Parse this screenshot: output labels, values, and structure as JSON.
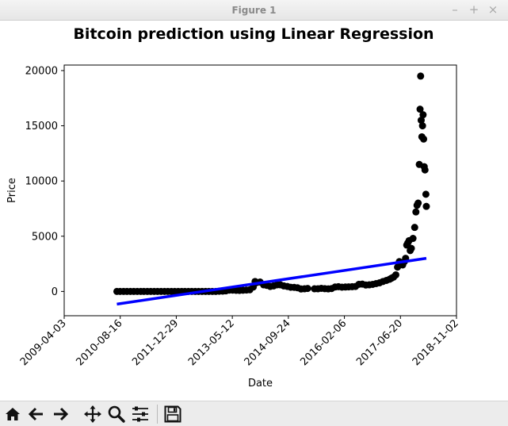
{
  "window": {
    "title": "Figure 1",
    "minimize_glyph": "–",
    "maximize_glyph": "+",
    "close_glyph": "×"
  },
  "toolbar": {
    "buttons": [
      {
        "name": "home-icon",
        "icon": "home"
      },
      {
        "name": "back-icon",
        "icon": "arrow-left"
      },
      {
        "name": "forward-icon",
        "icon": "arrow-right"
      },
      {
        "name": "pan-icon",
        "icon": "move-arrows"
      },
      {
        "name": "zoom-icon",
        "icon": "magnifier"
      },
      {
        "name": "configure-subplots-icon",
        "icon": "sliders"
      },
      {
        "name": "save-icon",
        "icon": "floppy-disk"
      }
    ]
  },
  "chart_data": {
    "type": "scatter",
    "title": "Bitcoin prediction using Linear Regression",
    "xlabel": "Date",
    "ylabel": "Price",
    "xlim": [
      "2009-04-03",
      "2018-11-02"
    ],
    "ylim": [
      -2200,
      20500
    ],
    "x_ticks": [
      "2009-04-03",
      "2010-08-16",
      "2011-12-29",
      "2013-05-12",
      "2014-09-24",
      "2016-02-06",
      "2017-06-20",
      "2018-11-02"
    ],
    "y_ticks": [
      0,
      5000,
      10000,
      15000,
      20000
    ],
    "grid": false,
    "colors": {
      "points": "#000000",
      "regression_line": "#0000ff"
    },
    "series": [
      {
        "kind": "scatter",
        "points": [
          [
            "2010-07-17",
            0
          ],
          [
            "2010-08-15",
            0
          ],
          [
            "2010-09-15",
            0
          ],
          [
            "2010-10-15",
            0
          ],
          [
            "2010-11-15",
            0
          ],
          [
            "2010-12-15",
            0
          ],
          [
            "2011-01-15",
            0
          ],
          [
            "2011-02-15",
            0
          ],
          [
            "2011-03-15",
            0
          ],
          [
            "2011-04-15",
            0
          ],
          [
            "2011-05-15",
            0
          ],
          [
            "2011-06-15",
            0
          ],
          [
            "2011-07-15",
            0
          ],
          [
            "2011-08-15",
            0
          ],
          [
            "2011-09-15",
            0
          ],
          [
            "2011-10-15",
            0
          ],
          [
            "2011-11-15",
            0
          ],
          [
            "2011-12-15",
            0
          ],
          [
            "2012-01-15",
            0
          ],
          [
            "2012-02-15",
            0
          ],
          [
            "2012-03-15",
            0
          ],
          [
            "2012-04-15",
            0
          ],
          [
            "2012-05-15",
            0
          ],
          [
            "2012-06-15",
            0
          ],
          [
            "2012-07-15",
            0
          ],
          [
            "2012-08-15",
            0
          ],
          [
            "2012-09-15",
            0
          ],
          [
            "2012-10-15",
            0
          ],
          [
            "2012-11-15",
            0
          ],
          [
            "2012-12-15",
            0
          ],
          [
            "2013-01-15",
            20
          ],
          [
            "2013-02-15",
            30
          ],
          [
            "2013-03-15",
            50
          ],
          [
            "2013-04-15",
            120
          ],
          [
            "2013-05-15",
            120
          ],
          [
            "2013-06-15",
            100
          ],
          [
            "2013-07-15",
            90
          ],
          [
            "2013-08-15",
            110
          ],
          [
            "2013-09-15",
            130
          ],
          [
            "2013-10-15",
            150
          ],
          [
            "2013-11-15",
            400
          ],
          [
            "2013-12-01",
            900
          ],
          [
            "2013-12-15",
            800
          ],
          [
            "2014-01-15",
            850
          ],
          [
            "2014-02-15",
            600
          ],
          [
            "2014-03-15",
            550
          ],
          [
            "2014-04-15",
            450
          ],
          [
            "2014-05-15",
            500
          ],
          [
            "2014-06-15",
            600
          ],
          [
            "2014-07-15",
            600
          ],
          [
            "2014-08-15",
            500
          ],
          [
            "2014-09-15",
            450
          ],
          [
            "2014-10-15",
            380
          ],
          [
            "2014-11-15",
            370
          ],
          [
            "2014-12-15",
            330
          ],
          [
            "2015-01-15",
            220
          ],
          [
            "2015-02-15",
            240
          ],
          [
            "2015-03-15",
            270
          ],
          [
            "2015-05-15",
            240
          ],
          [
            "2015-06-15",
            240
          ],
          [
            "2015-07-15",
            280
          ],
          [
            "2015-08-15",
            250
          ],
          [
            "2015-09-15",
            230
          ],
          [
            "2015-10-15",
            260
          ],
          [
            "2015-11-15",
            400
          ],
          [
            "2015-12-15",
            430
          ],
          [
            "2016-01-15",
            390
          ],
          [
            "2016-02-15",
            400
          ],
          [
            "2016-03-15",
            415
          ],
          [
            "2016-04-15",
            430
          ],
          [
            "2016-05-15",
            450
          ],
          [
            "2016-06-15",
            650
          ],
          [
            "2016-07-15",
            660
          ],
          [
            "2016-08-15",
            580
          ],
          [
            "2016-09-15",
            600
          ],
          [
            "2016-10-15",
            640
          ],
          [
            "2016-11-15",
            710
          ],
          [
            "2016-12-15",
            780
          ],
          [
            "2017-01-15",
            900
          ],
          [
            "2017-02-15",
            1000
          ],
          [
            "2017-03-15",
            1100
          ],
          [
            "2017-04-01",
            1200
          ],
          [
            "2017-04-20",
            1300
          ],
          [
            "2017-05-10",
            1500
          ],
          [
            "2017-05-25",
            2200
          ],
          [
            "2017-06-10",
            2700
          ],
          [
            "2017-06-25",
            2600
          ],
          [
            "2017-07-10",
            2400
          ],
          [
            "2017-07-25",
            2700
          ],
          [
            "2017-08-05",
            3000
          ],
          [
            "2017-08-15",
            4200
          ],
          [
            "2017-08-25",
            4400
          ],
          [
            "2017-09-05",
            4600
          ],
          [
            "2017-09-15",
            3700
          ],
          [
            "2017-09-25",
            3900
          ],
          [
            "2017-10-10",
            4800
          ],
          [
            "2017-10-25",
            5800
          ],
          [
            "2017-11-05",
            7200
          ],
          [
            "2017-11-15",
            7800
          ],
          [
            "2017-11-25",
            8000
          ],
          [
            "2017-12-05",
            11500
          ],
          [
            "2017-12-12",
            16500
          ],
          [
            "2017-12-17",
            19500
          ],
          [
            "2017-12-22",
            15500
          ],
          [
            "2017-12-28",
            14000
          ],
          [
            "2018-01-03",
            15000
          ],
          [
            "2018-01-08",
            16000
          ],
          [
            "2018-01-13",
            13800
          ],
          [
            "2018-01-18",
            11300
          ],
          [
            "2018-01-25",
            11000
          ],
          [
            "2018-02-02",
            8800
          ],
          [
            "2018-02-06",
            7700
          ]
        ]
      },
      {
        "kind": "line",
        "points": [
          [
            "2010-07-17",
            -1150
          ],
          [
            "2018-02-06",
            3000
          ]
        ]
      }
    ]
  }
}
